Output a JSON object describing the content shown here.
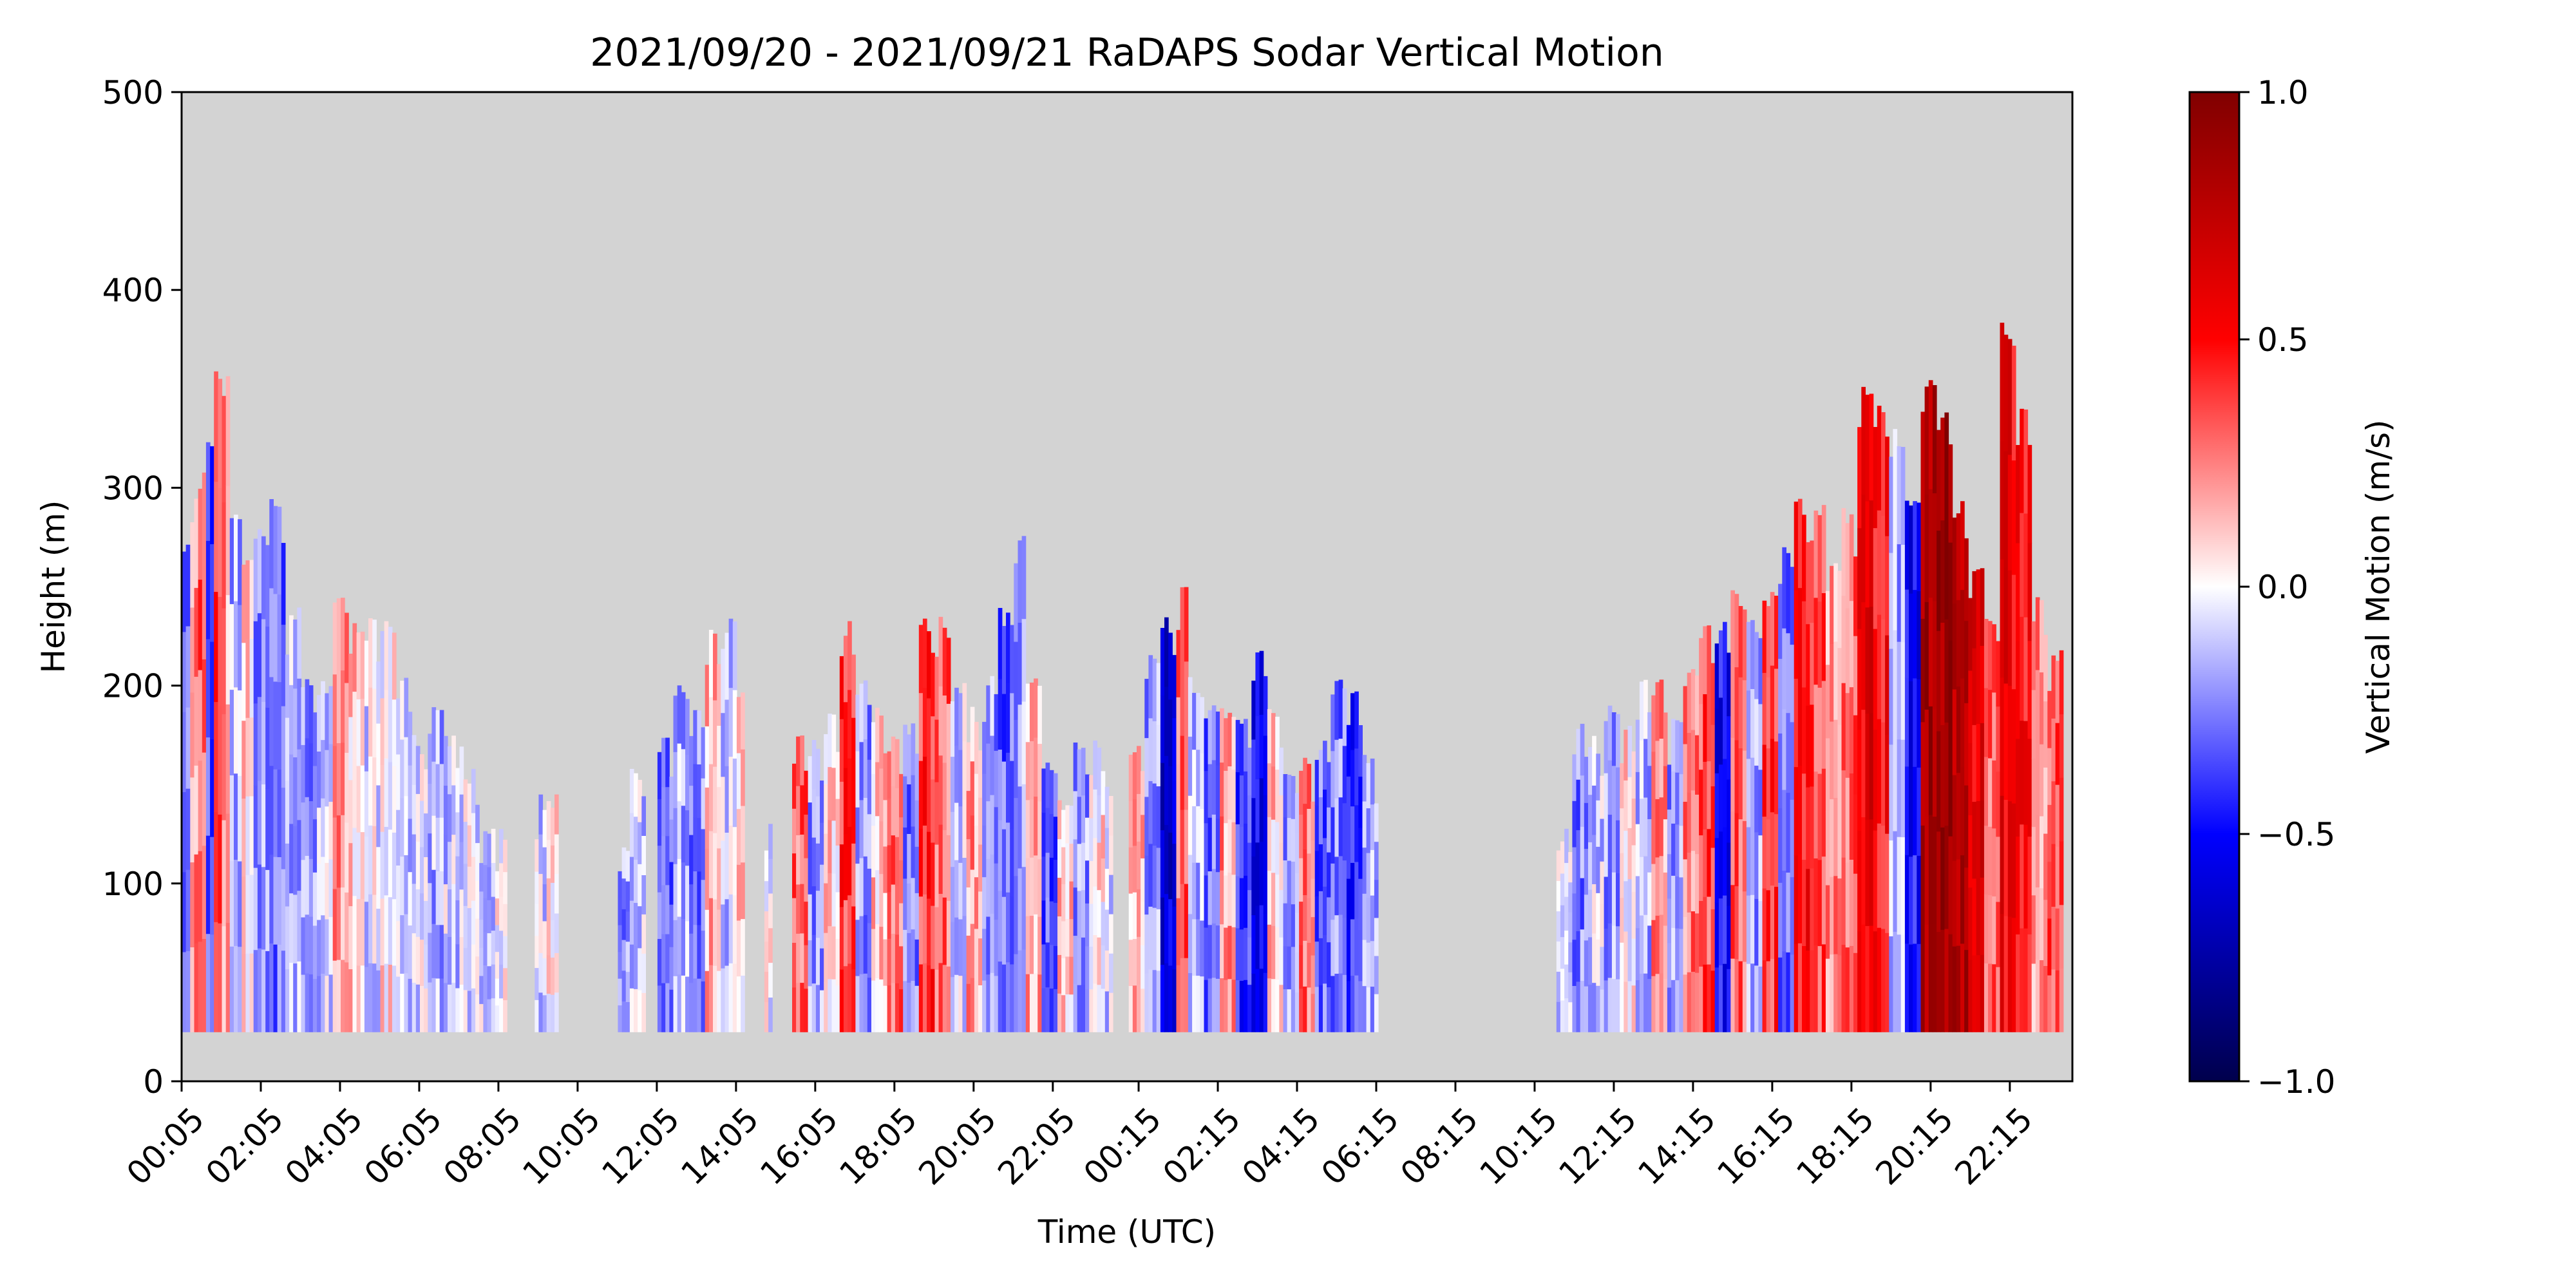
{
  "chart_data": {
    "type": "heatmap",
    "title": "2021/09/20 - 2021/09/21 RaDAPS Sodar Vertical Motion",
    "xlabel": "Time (UTC)",
    "ylabel": "Height (m)",
    "ylim": [
      0,
      500
    ],
    "yticks": [
      0,
      100,
      200,
      300,
      400,
      500
    ],
    "xlim_hours": [
      0.0833,
      47.83
    ],
    "xticks": [
      {
        "label": "00:05",
        "hour": 0.0833
      },
      {
        "label": "02:05",
        "hour": 2.0833
      },
      {
        "label": "04:05",
        "hour": 4.0833
      },
      {
        "label": "06:05",
        "hour": 6.0833
      },
      {
        "label": "08:05",
        "hour": 8.0833
      },
      {
        "label": "10:05",
        "hour": 10.0833
      },
      {
        "label": "12:05",
        "hour": 12.0833
      },
      {
        "label": "14:05",
        "hour": 14.0833
      },
      {
        "label": "16:05",
        "hour": 16.0833
      },
      {
        "label": "18:05",
        "hour": 18.0833
      },
      {
        "label": "20:05",
        "hour": 20.0833
      },
      {
        "label": "22:05",
        "hour": 22.0833
      },
      {
        "label": "00:15",
        "hour": 24.25
      },
      {
        "label": "02:15",
        "hour": 26.25
      },
      {
        "label": "04:15",
        "hour": 28.25
      },
      {
        "label": "06:15",
        "hour": 30.25
      },
      {
        "label": "08:15",
        "hour": 32.25
      },
      {
        "label": "10:15",
        "hour": 34.25
      },
      {
        "label": "12:15",
        "hour": 36.25
      },
      {
        "label": "14:15",
        "hour": 38.25
      },
      {
        "label": "16:15",
        "hour": 40.25
      },
      {
        "label": "18:15",
        "hour": 42.25
      },
      {
        "label": "20:15",
        "hour": 44.25
      },
      {
        "label": "22:15",
        "hour": 46.25
      }
    ],
    "colorbar": {
      "label": "Vertical Motion (m/s)",
      "range": [
        -1.0,
        1.0
      ],
      "ticks": [
        {
          "value": 1.0,
          "label": "1.0"
        },
        {
          "value": 0.5,
          "label": "0.5"
        },
        {
          "value": 0.0,
          "label": "0.0"
        },
        {
          "value": -0.5,
          "label": "−0.5"
        },
        {
          "value": -1.0,
          "label": "−1.0"
        }
      ],
      "colormap": "seismic"
    },
    "missing_color": "#d3d3d3",
    "min_height_m": 25,
    "profiles": [
      {
        "start": 0.08,
        "end": 0.3,
        "top": 280,
        "mean": -0.25
      },
      {
        "start": 0.3,
        "end": 0.5,
        "top": 295,
        "mean": 0.2
      },
      {
        "start": 0.5,
        "end": 0.7,
        "top": 310,
        "mean": 0.3
      },
      {
        "start": 0.7,
        "end": 0.9,
        "top": 325,
        "mean": -0.35
      },
      {
        "start": 0.9,
        "end": 1.1,
        "top": 360,
        "mean": 0.35
      },
      {
        "start": 1.1,
        "end": 1.3,
        "top": 365,
        "mean": 0.2
      },
      {
        "start": 1.3,
        "end": 1.6,
        "top": 290,
        "mean": -0.15
      },
      {
        "start": 1.6,
        "end": 1.9,
        "top": 265,
        "mean": 0.1
      },
      {
        "start": 1.9,
        "end": 2.3,
        "top": 280,
        "mean": -0.2
      },
      {
        "start": 2.3,
        "end": 2.7,
        "top": 295,
        "mean": -0.3
      },
      {
        "start": 2.7,
        "end": 3.1,
        "top": 240,
        "mean": -0.15
      },
      {
        "start": 3.1,
        "end": 3.5,
        "top": 205,
        "mean": -0.2
      },
      {
        "start": 3.5,
        "end": 3.9,
        "top": 205,
        "mean": -0.1
      },
      {
        "start": 3.9,
        "end": 4.3,
        "top": 250,
        "mean": 0.2
      },
      {
        "start": 4.3,
        "end": 4.7,
        "top": 235,
        "mean": 0.1
      },
      {
        "start": 4.7,
        "end": 5.1,
        "top": 235,
        "mean": -0.05
      },
      {
        "start": 5.1,
        "end": 5.5,
        "top": 235,
        "mean": 0.05
      },
      {
        "start": 5.5,
        "end": 5.9,
        "top": 205,
        "mean": -0.1
      },
      {
        "start": 5.9,
        "end": 6.3,
        "top": 175,
        "mean": -0.05
      },
      {
        "start": 6.3,
        "end": 6.7,
        "top": 190,
        "mean": -0.15
      },
      {
        "start": 6.7,
        "end": 7.2,
        "top": 175,
        "mean": -0.1
      },
      {
        "start": 7.2,
        "end": 7.6,
        "top": 160,
        "mean": -0.05
      },
      {
        "start": 7.6,
        "end": 8.0,
        "top": 130,
        "mean": -0.1
      },
      {
        "start": 8.0,
        "end": 8.3,
        "top": 130,
        "mean": 0.0
      },
      {
        "start": 9.0,
        "end": 9.3,
        "top": 145,
        "mean": -0.1
      },
      {
        "start": 9.3,
        "end": 9.6,
        "top": 145,
        "mean": 0.05
      },
      {
        "start": 11.1,
        "end": 11.4,
        "top": 120,
        "mean": -0.2
      },
      {
        "start": 11.4,
        "end": 11.8,
        "top": 160,
        "mean": -0.1
      },
      {
        "start": 12.1,
        "end": 12.5,
        "top": 175,
        "mean": -0.3
      },
      {
        "start": 12.5,
        "end": 12.9,
        "top": 205,
        "mean": -0.15
      },
      {
        "start": 12.9,
        "end": 13.3,
        "top": 190,
        "mean": -0.25
      },
      {
        "start": 13.3,
        "end": 13.7,
        "top": 235,
        "mean": 0.15
      },
      {
        "start": 13.7,
        "end": 14.1,
        "top": 235,
        "mean": -0.1
      },
      {
        "start": 14.1,
        "end": 14.3,
        "top": 200,
        "mean": 0.1
      },
      {
        "start": 14.8,
        "end": 15.0,
        "top": 140,
        "mean": 0.0
      },
      {
        "start": 15.5,
        "end": 15.9,
        "top": 175,
        "mean": 0.3
      },
      {
        "start": 15.9,
        "end": 16.3,
        "top": 175,
        "mean": -0.2
      },
      {
        "start": 16.3,
        "end": 16.7,
        "top": 190,
        "mean": 0.1
      },
      {
        "start": 16.7,
        "end": 17.1,
        "top": 235,
        "mean": 0.4
      },
      {
        "start": 17.1,
        "end": 17.5,
        "top": 205,
        "mean": -0.2
      },
      {
        "start": 17.5,
        "end": 17.9,
        "top": 190,
        "mean": 0.1
      },
      {
        "start": 17.9,
        "end": 18.3,
        "top": 175,
        "mean": 0.3
      },
      {
        "start": 18.3,
        "end": 18.7,
        "top": 185,
        "mean": -0.25
      },
      {
        "start": 18.7,
        "end": 19.1,
        "top": 235,
        "mean": 0.4
      },
      {
        "start": 19.1,
        "end": 19.5,
        "top": 235,
        "mean": 0.3
      },
      {
        "start": 19.5,
        "end": 19.9,
        "top": 205,
        "mean": -0.1
      },
      {
        "start": 19.9,
        "end": 20.3,
        "top": 190,
        "mean": 0.2
      },
      {
        "start": 20.3,
        "end": 20.7,
        "top": 205,
        "mean": -0.2
      },
      {
        "start": 20.7,
        "end": 21.1,
        "top": 240,
        "mean": -0.3
      },
      {
        "start": 21.1,
        "end": 21.4,
        "top": 280,
        "mean": -0.2
      },
      {
        "start": 21.4,
        "end": 21.8,
        "top": 205,
        "mean": 0.15
      },
      {
        "start": 21.8,
        "end": 22.2,
        "top": 165,
        "mean": -0.35
      },
      {
        "start": 22.2,
        "end": 22.6,
        "top": 145,
        "mean": 0.1
      },
      {
        "start": 22.6,
        "end": 23.0,
        "top": 175,
        "mean": -0.2
      },
      {
        "start": 23.0,
        "end": 23.4,
        "top": 175,
        "mean": 0.05
      },
      {
        "start": 23.4,
        "end": 23.6,
        "top": 150,
        "mean": -0.1
      },
      {
        "start": 24.0,
        "end": 24.4,
        "top": 175,
        "mean": 0.15
      },
      {
        "start": 24.4,
        "end": 24.8,
        "top": 220,
        "mean": -0.2
      },
      {
        "start": 24.8,
        "end": 25.2,
        "top": 235,
        "mean": -0.6
      },
      {
        "start": 25.2,
        "end": 25.5,
        "top": 250,
        "mean": 0.3
      },
      {
        "start": 25.5,
        "end": 25.9,
        "top": 205,
        "mean": -0.15
      },
      {
        "start": 25.9,
        "end": 26.3,
        "top": 190,
        "mean": -0.3
      },
      {
        "start": 26.3,
        "end": 26.7,
        "top": 190,
        "mean": 0.2
      },
      {
        "start": 26.7,
        "end": 27.1,
        "top": 190,
        "mean": -0.4
      },
      {
        "start": 27.1,
        "end": 27.5,
        "top": 220,
        "mean": -0.5
      },
      {
        "start": 27.5,
        "end": 27.9,
        "top": 190,
        "mean": 0.1
      },
      {
        "start": 27.9,
        "end": 28.3,
        "top": 160,
        "mean": -0.2
      },
      {
        "start": 28.3,
        "end": 28.7,
        "top": 165,
        "mean": 0.3
      },
      {
        "start": 28.7,
        "end": 29.1,
        "top": 175,
        "mean": -0.3
      },
      {
        "start": 29.1,
        "end": 29.5,
        "top": 205,
        "mean": -0.25
      },
      {
        "start": 29.5,
        "end": 29.9,
        "top": 200,
        "mean": -0.4
      },
      {
        "start": 29.9,
        "end": 30.3,
        "top": 165,
        "mean": -0.15
      },
      {
        "start": 34.8,
        "end": 35.2,
        "top": 130,
        "mean": -0.1
      },
      {
        "start": 35.2,
        "end": 35.6,
        "top": 185,
        "mean": -0.25
      },
      {
        "start": 35.6,
        "end": 36.0,
        "top": 175,
        "mean": -0.1
      },
      {
        "start": 36.0,
        "end": 36.4,
        "top": 190,
        "mean": -0.2
      },
      {
        "start": 36.4,
        "end": 36.8,
        "top": 185,
        "mean": 0.05
      },
      {
        "start": 36.8,
        "end": 37.2,
        "top": 205,
        "mean": -0.15
      },
      {
        "start": 37.2,
        "end": 37.6,
        "top": 205,
        "mean": 0.2
      },
      {
        "start": 37.6,
        "end": 38.0,
        "top": 185,
        "mean": -0.2
      },
      {
        "start": 38.0,
        "end": 38.4,
        "top": 215,
        "mean": 0.25
      },
      {
        "start": 38.4,
        "end": 38.8,
        "top": 235,
        "mean": 0.35
      },
      {
        "start": 38.8,
        "end": 39.2,
        "top": 235,
        "mean": -0.5
      },
      {
        "start": 39.2,
        "end": 39.6,
        "top": 250,
        "mean": 0.3
      },
      {
        "start": 39.6,
        "end": 40.0,
        "top": 235,
        "mean": -0.2
      },
      {
        "start": 40.0,
        "end": 40.4,
        "top": 250,
        "mean": 0.4
      },
      {
        "start": 40.4,
        "end": 40.8,
        "top": 275,
        "mean": -0.3
      },
      {
        "start": 40.8,
        "end": 41.2,
        "top": 295,
        "mean": 0.5
      },
      {
        "start": 41.2,
        "end": 41.6,
        "top": 295,
        "mean": 0.35
      },
      {
        "start": 41.6,
        "end": 42.0,
        "top": 270,
        "mean": 0.2
      },
      {
        "start": 42.0,
        "end": 42.4,
        "top": 290,
        "mean": 0.3
      },
      {
        "start": 42.4,
        "end": 42.8,
        "top": 355,
        "mean": 0.6
      },
      {
        "start": 42.8,
        "end": 43.2,
        "top": 345,
        "mean": 0.5
      },
      {
        "start": 43.2,
        "end": 43.6,
        "top": 330,
        "mean": -0.15
      },
      {
        "start": 43.6,
        "end": 44.0,
        "top": 300,
        "mean": -0.5
      },
      {
        "start": 44.0,
        "end": 44.4,
        "top": 355,
        "mean": 0.85
      },
      {
        "start": 44.4,
        "end": 44.8,
        "top": 340,
        "mean": 0.9
      },
      {
        "start": 44.8,
        "end": 45.2,
        "top": 295,
        "mean": 0.8
      },
      {
        "start": 45.2,
        "end": 45.6,
        "top": 265,
        "mean": 0.6
      },
      {
        "start": 45.6,
        "end": 46.0,
        "top": 240,
        "mean": 0.3
      },
      {
        "start": 46.0,
        "end": 46.4,
        "top": 385,
        "mean": 0.55
      },
      {
        "start": 46.4,
        "end": 46.8,
        "top": 340,
        "mean": 0.5
      },
      {
        "start": 46.8,
        "end": 47.2,
        "top": 250,
        "mean": 0.2
      },
      {
        "start": 47.2,
        "end": 47.6,
        "top": 220,
        "mean": 0.35
      }
    ]
  }
}
